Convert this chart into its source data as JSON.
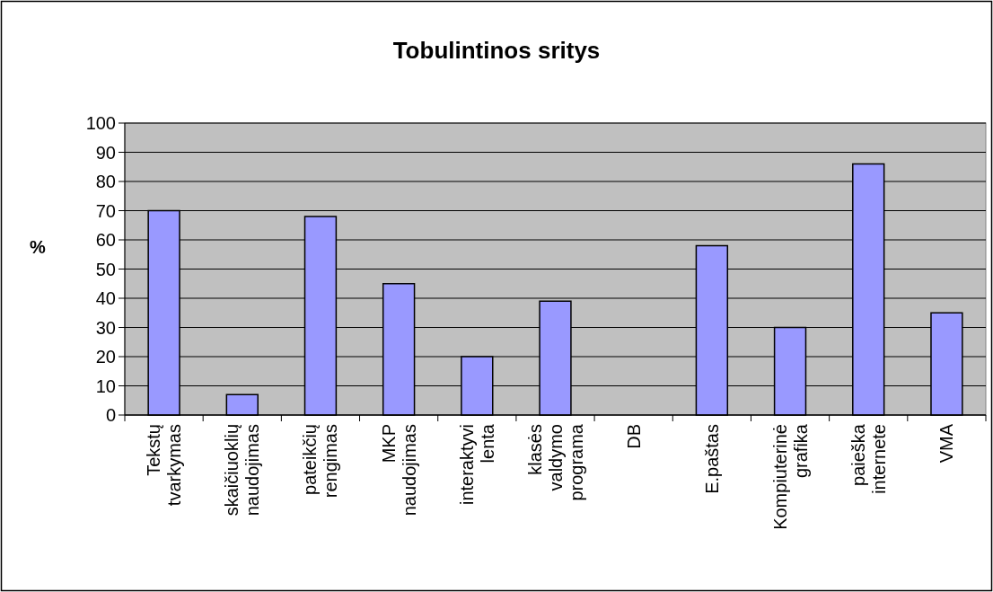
{
  "chart_data": {
    "type": "bar",
    "title": "Tobulintinos sritys",
    "ylabel": "%",
    "categories": [
      "Tekstų tvarkymas",
      "skaičiuoklių naudojimas",
      "pateikčių rengimas",
      "MKP naudojimas",
      "interaktyvi lenta",
      "klasės valdymo programa",
      "DB",
      "E.paštas",
      "Kompiuterinė grafika",
      "paieška internete",
      "VMA"
    ],
    "values": [
      70,
      7,
      68,
      45,
      20,
      39,
      0,
      58,
      30,
      86,
      35
    ],
    "color": "#9999ff",
    "ylim": [
      0,
      100
    ],
    "yticks": [
      0,
      10,
      20,
      30,
      40,
      50,
      60,
      70,
      80,
      90,
      100
    ],
    "grid": "y"
  }
}
